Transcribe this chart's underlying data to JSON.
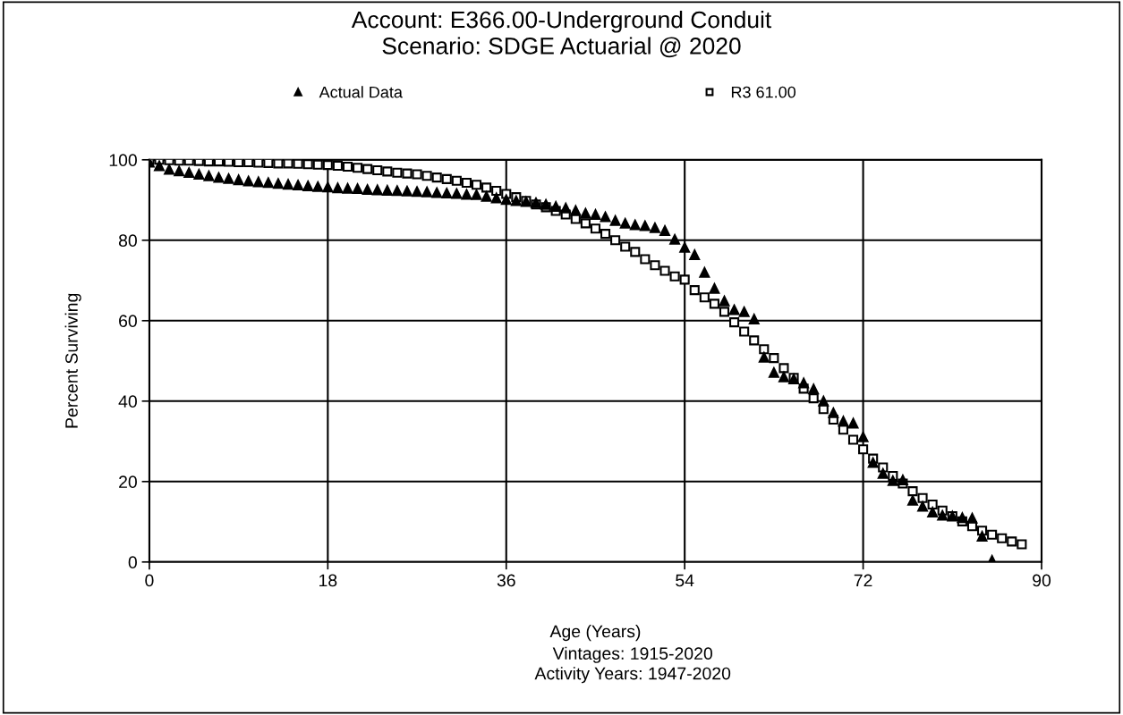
{
  "chart_data": {
    "type": "scatter",
    "title": "Account: E366.00-Underground Conduit\nScenario: SDGE Actuarial @ 2020",
    "xlabel": "Age (Years)",
    "ylabel": "Percent Surviving",
    "annotations": [
      "Vintages: 1915-2020",
      "Activity Years: 1947-2020"
    ],
    "xlim": [
      0,
      90
    ],
    "xticks": [
      0,
      18,
      36,
      54,
      72,
      90
    ],
    "ylim": [
      0,
      100
    ],
    "yticks": [
      0,
      20,
      40,
      60,
      80,
      100
    ],
    "grid": true,
    "legend": "top",
    "series": [
      {
        "name": "Actual Data",
        "color": "#000000",
        "marker": "triangle",
        "x": [
          0,
          1,
          2,
          3,
          4,
          5,
          6,
          7,
          8,
          9,
          10,
          11,
          12,
          13,
          14,
          15,
          16,
          17,
          18,
          19,
          20,
          21,
          22,
          23,
          24,
          25,
          26,
          27,
          28,
          29,
          30,
          31,
          32,
          33,
          34,
          35,
          36,
          37,
          38,
          39,
          40,
          41,
          42,
          43,
          44,
          45,
          46,
          47,
          48,
          49,
          50,
          51,
          52,
          53,
          54,
          55,
          56,
          57,
          58,
          59,
          60,
          61,
          62,
          63,
          64,
          65,
          66,
          67,
          68,
          69,
          70,
          71,
          72,
          73,
          74,
          75,
          76,
          77,
          78,
          79,
          80,
          81,
          82,
          83,
          84,
          85
        ],
        "values": [
          99.4,
          98.5,
          97.6,
          97.2,
          96.8,
          96.4,
          96.0,
          95.6,
          95.3,
          95.0,
          94.7,
          94.5,
          94.3,
          94.1,
          93.9,
          93.7,
          93.5,
          93.3,
          93.2,
          93.0,
          92.9,
          92.8,
          92.6,
          92.5,
          92.4,
          92.3,
          92.2,
          92.1,
          92.0,
          91.8,
          91.7,
          91.6,
          91.4,
          91.3,
          90.9,
          90.5,
          90.1,
          89.8,
          89.6,
          89.3,
          88.9,
          88.4,
          88.0,
          87.4,
          86.7,
          86.4,
          85.8,
          84.9,
          84.2,
          83.8,
          83.6,
          83.1,
          82.4,
          80.2,
          78.2,
          76.4,
          72.0,
          68.0,
          64.9,
          62.7,
          62.2,
          60.4,
          50.9,
          47.1,
          46.0,
          45.5,
          44.5,
          43.0,
          40.0,
          37.1,
          35.0,
          34.5,
          31.1,
          24.7,
          22.0,
          20.2,
          20.4,
          15.3,
          13.8,
          12.4,
          11.6,
          11.4,
          11.0,
          10.9,
          6.4,
          0.4
        ]
      },
      {
        "name": "R3 61.00",
        "color": "#000000",
        "marker": "square",
        "x": [
          0,
          1,
          2,
          3,
          4,
          5,
          6,
          7,
          8,
          9,
          10,
          11,
          12,
          13,
          14,
          15,
          16,
          17,
          18,
          19,
          20,
          21,
          22,
          23,
          24,
          25,
          26,
          27,
          28,
          29,
          30,
          31,
          32,
          33,
          34,
          35,
          36,
          37,
          38,
          39,
          40,
          41,
          42,
          43,
          44,
          45,
          46,
          47,
          48,
          49,
          50,
          51,
          52,
          53,
          54,
          55,
          56,
          57,
          58,
          59,
          60,
          61,
          62,
          63,
          64,
          65,
          66,
          67,
          68,
          69,
          70,
          71,
          72,
          73,
          74,
          75,
          76,
          77,
          78,
          79,
          80,
          81,
          82,
          83,
          84,
          85,
          86,
          87,
          88
        ],
        "values": [
          100,
          100,
          99.9,
          99.8,
          99.8,
          99.7,
          99.6,
          99.6,
          99.5,
          99.4,
          99.4,
          99.3,
          99.2,
          99.1,
          99.1,
          99.0,
          98.9,
          98.8,
          98.7,
          98.5,
          98.3,
          98.0,
          97.7,
          97.4,
          97.1,
          96.8,
          96.6,
          96.4,
          96.0,
          95.6,
          95.2,
          94.8,
          94.3,
          93.8,
          93.1,
          92.3,
          91.5,
          90.7,
          89.8,
          88.9,
          88.2,
          87.3,
          86.4,
          85.3,
          84.2,
          82.9,
          81.6,
          80.0,
          78.4,
          77.1,
          75.3,
          73.8,
          72.4,
          71.0,
          70.2,
          67.6,
          65.8,
          64.2,
          62.2,
          59.6,
          57.3,
          55.1,
          52.9,
          50.7,
          48.2,
          45.8,
          43.1,
          40.7,
          38.0,
          35.4,
          32.9,
          30.4,
          28.0,
          25.7,
          23.5,
          21.4,
          19.5,
          17.6,
          15.9,
          14.3,
          12.8,
          11.4,
          10.1,
          8.9,
          7.8,
          6.8,
          5.9,
          5.1,
          4.4
        ]
      }
    ]
  }
}
